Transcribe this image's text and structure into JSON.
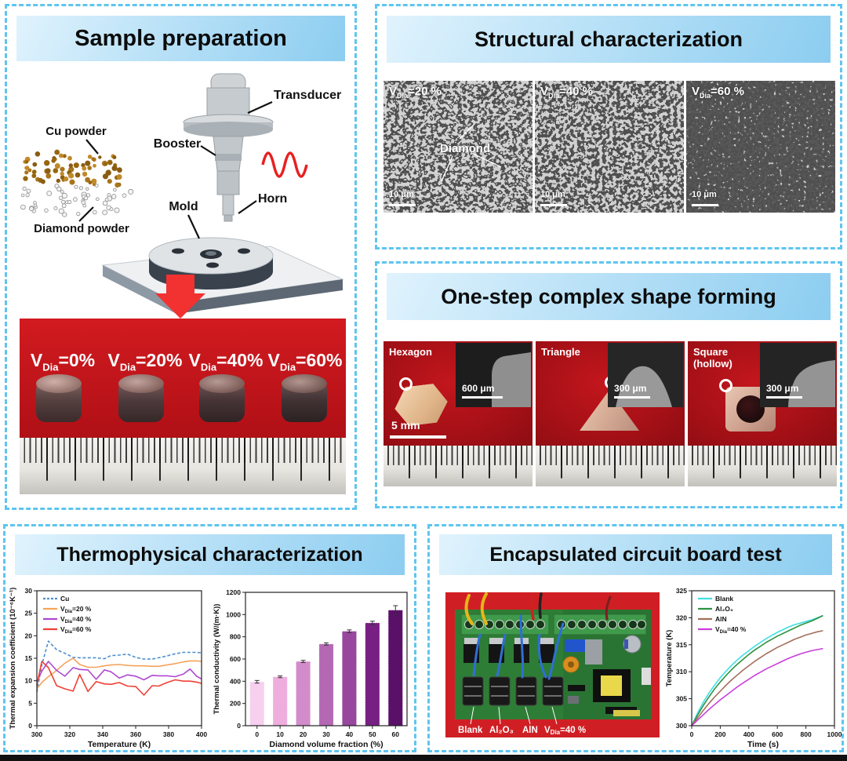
{
  "page": {
    "accent_border": "#5ec5ef",
    "header_gradient": [
      "#e0f3fd",
      "#8ccdf0"
    ],
    "photo_red": "#b31117"
  },
  "panels": {
    "sample_preparation": {
      "title": "Sample preparation",
      "diagram_labels": {
        "cu_powder": "Cu powder",
        "diamond_powder": "Diamond powder",
        "transducer": "Transducer",
        "booster": "Booster",
        "mold": "Mold",
        "horn": "Horn"
      },
      "photo_labels": [
        {
          "pre": "V",
          "sub": "Dia",
          "post": "=0%"
        },
        {
          "pre": "V",
          "sub": "Dia",
          "post": "=20%"
        },
        {
          "pre": "V",
          "sub": "Dia",
          "post": "=40%"
        },
        {
          "pre": "V",
          "sub": "Dia",
          "post": "=60%"
        }
      ]
    },
    "structural": {
      "title": "Structural characterization",
      "images": [
        {
          "label": {
            "pre": "V",
            "sub": "Dia",
            "post": "=20 %"
          },
          "scale_bar": "10 μm",
          "annotation": "Diamond"
        },
        {
          "label": {
            "pre": "V",
            "sub": "Dia",
            "post": "=40 %"
          },
          "scale_bar": "10 μm"
        },
        {
          "label": {
            "pre": "V",
            "sub": "Dia",
            "post": "=60 %"
          },
          "scale_bar": "10 μm"
        }
      ]
    },
    "shape_forming": {
      "title": "One-step complex shape forming",
      "items": [
        {
          "name": "Hexagon",
          "name2": "",
          "photo_scale": "5 mm",
          "inset_scale": "600 μm"
        },
        {
          "name": "Triangle",
          "name2": "",
          "inset_scale": "300 μm"
        },
        {
          "name": "Square",
          "name2": "(hollow)",
          "inset_scale": "300 μm"
        }
      ]
    },
    "thermophysical": {
      "title": "Thermophysical characterization"
    },
    "circuit_test": {
      "title": "Encapsulated circuit board test",
      "board_labels": [
        {
          "pre": "Blank",
          "sub": "",
          "post": ""
        },
        {
          "pre": "Al₂O₃",
          "sub": "",
          "post": ""
        },
        {
          "pre": "AlN",
          "sub": "",
          "post": ""
        },
        {
          "pre": "V",
          "sub": "Dia",
          "post": "=40 %"
        }
      ]
    }
  },
  "chart_data": [
    {
      "id": "expansion",
      "type": "line",
      "xlabel": "Temperature (K)",
      "ylabel": "Thermal expansion coefficient (10⁻⁶K⁻¹)",
      "xlim": [
        300,
        400
      ],
      "ylim": [
        0,
        30
      ],
      "xticks": [
        300,
        320,
        340,
        360,
        380,
        400
      ],
      "yticks": [
        0,
        5,
        10,
        15,
        20,
        25,
        30
      ],
      "grid": false,
      "legend_position": "upper-left",
      "x": [
        300,
        303,
        307,
        312,
        317,
        322,
        326,
        331,
        336,
        341,
        345,
        350,
        355,
        360,
        365,
        370,
        374,
        379,
        384,
        389,
        393,
        397,
        400
      ],
      "series": [
        {
          "name": "Cu",
          "color": "#4d8fd1",
          "dash": true,
          "values": [
            7.5,
            13.5,
            18.8,
            16.9,
            16.1,
            15.2,
            15.1,
            15.1,
            15.1,
            14.9,
            15.6,
            15.7,
            15.9,
            15.2,
            14.8,
            14.8,
            15.1,
            15.5,
            16.0,
            16.3,
            16.3,
            16.3,
            16.2
          ]
        },
        {
          "name": {
            "pre": "V",
            "sub": "Dia",
            "post": "=20 %"
          },
          "color": "#f5a35b",
          "values": [
            8.2,
            9.6,
            10.9,
            12.3,
            13.9,
            15.0,
            13.6,
            13.0,
            13.0,
            13.3,
            13.5,
            13.6,
            13.4,
            13.3,
            13.3,
            13.2,
            13.2,
            13.5,
            13.8,
            14.2,
            14.4,
            14.4,
            14.3
          ]
        },
        {
          "name": {
            "pre": "V",
            "sub": "Dia",
            "post": "=40 %"
          },
          "color": "#ae49cf",
          "values": [
            9.7,
            12.1,
            14.3,
            12.3,
            11.0,
            12.9,
            12.5,
            12.4,
            10.3,
            12.4,
            12.0,
            10.6,
            11.3,
            11.0,
            10.2,
            11.2,
            11.1,
            11.1,
            10.9,
            11.5,
            12.6,
            11.0,
            10.4
          ]
        },
        {
          "name": {
            "pre": "V",
            "sub": "Dia",
            "post": "=60 %"
          },
          "color": "#ef4136",
          "values": [
            9.0,
            14.3,
            12.9,
            8.9,
            8.2,
            7.7,
            11.4,
            7.6,
            9.8,
            9.3,
            9.2,
            9.6,
            8.8,
            8.7,
            6.8,
            8.9,
            8.8,
            9.6,
            10.2,
            9.9,
            9.9,
            9.7,
            9.4
          ]
        }
      ]
    },
    {
      "id": "conductivity",
      "type": "bar",
      "xlabel": "Diamond volume fraction (%)",
      "ylabel": "Thermal conductivity (W/(m·K))",
      "categories": [
        "0",
        "10",
        "20",
        "30",
        "40",
        "50",
        "60"
      ],
      "values": [
        395,
        440,
        578,
        735,
        850,
        925,
        1040
      ],
      "errors": [
        12,
        8,
        10,
        10,
        12,
        15,
        40
      ],
      "colors": [
        "#f7d0ef",
        "#efadde",
        "#d28ccc",
        "#b468b4",
        "#97479d",
        "#771f82",
        "#5a0f68"
      ],
      "ylim": [
        0,
        1200
      ],
      "yticks": [
        0,
        200,
        400,
        600,
        800,
        1000,
        1200
      ],
      "grid": false
    },
    {
      "id": "board_temp",
      "type": "line",
      "xlabel": "Time (s)",
      "ylabel": "Temperature (K)",
      "xlim": [
        0,
        1000
      ],
      "ylim": [
        300,
        325
      ],
      "xticks": [
        0,
        200,
        400,
        600,
        800,
        1000
      ],
      "yticks": [
        300,
        305,
        310,
        315,
        320,
        325
      ],
      "grid": false,
      "legend_position": "upper-left",
      "x": [
        0,
        40,
        80,
        120,
        160,
        200,
        240,
        280,
        320,
        360,
        400,
        440,
        480,
        520,
        560,
        600,
        640,
        680,
        720,
        760,
        800,
        840,
        880,
        920
      ],
      "series": [
        {
          "name": "Blank",
          "color": "#3fdfe4",
          "values": [
            300,
            302.3,
            304.3,
            306.0,
            307.5,
            308.9,
            310.1,
            311.2,
            312.2,
            313.1,
            313.9,
            314.7,
            315.4,
            316.1,
            316.7,
            317.3,
            317.8,
            318.3,
            318.7,
            319.0,
            319.3,
            319.6,
            320.0,
            320.4
          ]
        },
        {
          "name": "Al₂O₃",
          "color": "#2f9242",
          "values": [
            300,
            301.9,
            303.7,
            305.3,
            306.8,
            308.1,
            309.3,
            310.4,
            311.4,
            312.3,
            313.2,
            314.0,
            314.7,
            315.4,
            316.0,
            316.6,
            317.1,
            317.6,
            318.1,
            318.6,
            319.0,
            319.4,
            319.9,
            320.4
          ]
        },
        {
          "name": "AlN",
          "color": "#a36f5c",
          "values": [
            300,
            301.4,
            302.8,
            304.1,
            305.3,
            306.4,
            307.5,
            308.5,
            309.4,
            310.3,
            311.1,
            311.9,
            312.6,
            313.3,
            313.9,
            314.5,
            315.0,
            315.5,
            316.0,
            316.4,
            316.8,
            317.1,
            317.4,
            317.6
          ]
        },
        {
          "name": {
            "pre": "V",
            "sub": "Dia",
            "post": "=40 %"
          },
          "color": "#c93fdb",
          "values": [
            300,
            301.0,
            302.0,
            303.0,
            303.9,
            304.8,
            305.6,
            306.4,
            307.2,
            307.9,
            308.6,
            309.3,
            309.9,
            310.5,
            311.0,
            311.5,
            312.0,
            312.5,
            312.9,
            313.3,
            313.6,
            313.9,
            314.1,
            314.3
          ]
        }
      ]
    }
  ]
}
